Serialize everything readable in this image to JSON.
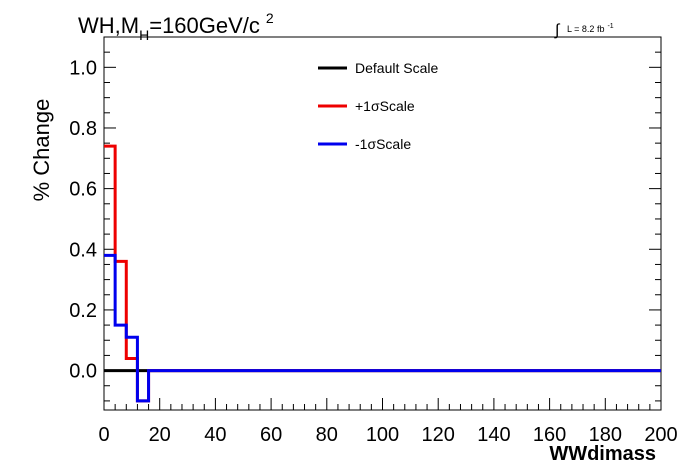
{
  "chart_data": {
    "type": "line",
    "title_main": "WH,M",
    "title_sub": "H",
    "title_rest": "=160GeV/c",
    "title_sup": "2",
    "lumi_label": "L = 8.2 fb",
    "lumi_sup": "-1",
    "xlabel": "WWdimass",
    "ylabel": "% Change",
    "xlim": [
      0,
      200
    ],
    "ylim": [
      -0.13,
      1.1
    ],
    "x_ticks": [
      0,
      20,
      40,
      60,
      80,
      100,
      120,
      140,
      160,
      180,
      200
    ],
    "x_tick_labels": [
      "0",
      "20",
      "40",
      "60",
      "80",
      "100",
      "120",
      "140",
      "160",
      "180",
      "200"
    ],
    "y_ticks": [
      0,
      0.2,
      0.4,
      0.6,
      0.8,
      1.0
    ],
    "y_tick_labels": [
      "0.0",
      "0.2",
      "0.4",
      "0.6",
      "0.8",
      "1.0"
    ],
    "grid": false,
    "legend_position": "top-center",
    "bin_edges": [
      0,
      4,
      8,
      12,
      16,
      200
    ],
    "series": [
      {
        "name": "Default Scale",
        "color": "#000000",
        "values": [
          0,
          0,
          0,
          0,
          0
        ]
      },
      {
        "name": "+1σScale",
        "color": "#ee0000",
        "values": [
          0.74,
          0.36,
          0.04,
          -0.1,
          0
        ]
      },
      {
        "name": "-1σScale",
        "color": "#0000ee",
        "values": [
          0.38,
          0.15,
          0.11,
          -0.1,
          0
        ]
      }
    ]
  }
}
